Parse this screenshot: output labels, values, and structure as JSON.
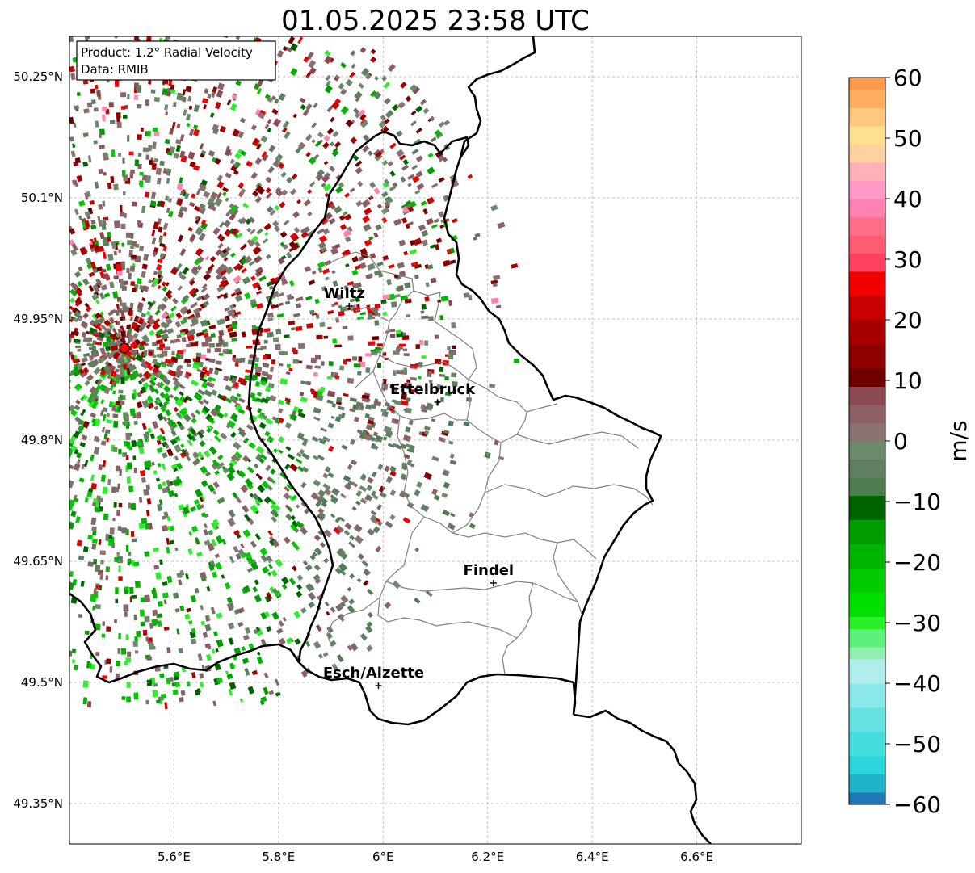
{
  "title": "01.05.2025 23:58 UTC",
  "info_box": {
    "product_line": "Product: 1.2° Radial Velocity",
    "data_line": "Data: RMIB"
  },
  "map": {
    "lon_range": [
      5.4,
      6.8
    ],
    "lat_range": [
      49.3,
      50.3
    ],
    "lon_ticks": [
      {
        "value": 5.6,
        "label": "5.6°E"
      },
      {
        "value": 5.8,
        "label": "5.8°E"
      },
      {
        "value": 6.0,
        "label": "6°E"
      },
      {
        "value": 6.2,
        "label": "6.2°E"
      },
      {
        "value": 6.4,
        "label": "6.4°E"
      },
      {
        "value": 6.6,
        "label": "6.6°E"
      }
    ],
    "lat_ticks": [
      {
        "value": 50.25,
        "label": "50.25°N"
      },
      {
        "value": 50.1,
        "label": "50.1°N"
      },
      {
        "value": 49.95,
        "label": "49.95°N"
      },
      {
        "value": 49.8,
        "label": "49.8°N"
      },
      {
        "value": 49.65,
        "label": "49.65°N"
      },
      {
        "value": 49.5,
        "label": "49.5°N"
      },
      {
        "value": 49.35,
        "label": "49.35°N"
      }
    ],
    "radar_site": {
      "lon": 5.505,
      "lat": 49.914,
      "color": "#ff0000"
    },
    "cities": [
      {
        "name": "Wiltz",
        "lon": 5.935,
        "lat": 49.966
      },
      {
        "name": "Ettelbruck",
        "lon": 6.104,
        "lat": 49.847
      },
      {
        "name": "Findel",
        "lon": 6.211,
        "lat": 49.623
      },
      {
        "name": "Esch/Alzette",
        "lon": 5.991,
        "lat": 49.496
      }
    ]
  },
  "colorbar": {
    "label": "m/s",
    "min": -60,
    "max": 60,
    "ticks": [
      {
        "value": 60,
        "label": "60"
      },
      {
        "value": 50,
        "label": "50"
      },
      {
        "value": 40,
        "label": "40"
      },
      {
        "value": 30,
        "label": "30"
      },
      {
        "value": 20,
        "label": "20"
      },
      {
        "value": 10,
        "label": "10"
      },
      {
        "value": 0,
        "label": "0"
      },
      {
        "value": -10,
        "label": "−10"
      },
      {
        "value": -20,
        "label": "−20"
      },
      {
        "value": -30,
        "label": "−30"
      },
      {
        "value": -40,
        "label": "−40"
      },
      {
        "value": -50,
        "label": "−50"
      },
      {
        "value": -60,
        "label": "−60"
      }
    ],
    "segments": [
      {
        "from": -60,
        "to": -58,
        "color": "#1f77b4"
      },
      {
        "from": -58,
        "to": -55,
        "color": "#1fb4c8"
      },
      {
        "from": -55,
        "to": -52,
        "color": "#2ad6dc"
      },
      {
        "from": -52,
        "to": -48,
        "color": "#45dede"
      },
      {
        "from": -48,
        "to": -44,
        "color": "#66e2e2"
      },
      {
        "from": -44,
        "to": -40,
        "color": "#8ae8e8"
      },
      {
        "from": -40,
        "to": -36,
        "color": "#b0eeee"
      },
      {
        "from": -36,
        "to": -34,
        "color": "#8ff0b0"
      },
      {
        "from": -34,
        "to": -31,
        "color": "#5ef07a"
      },
      {
        "from": -31,
        "to": -29,
        "color": "#2af02a"
      },
      {
        "from": -29,
        "to": -25,
        "color": "#00e000"
      },
      {
        "from": -25,
        "to": -21,
        "color": "#00cc00"
      },
      {
        "from": -21,
        "to": -17,
        "color": "#00b400"
      },
      {
        "from": -17,
        "to": -13,
        "color": "#009c00"
      },
      {
        "from": -13,
        "to": -9,
        "color": "#006400"
      },
      {
        "from": -9,
        "to": -6,
        "color": "#4f7d4f"
      },
      {
        "from": -6,
        "to": -3,
        "color": "#5e8060"
      },
      {
        "from": -3,
        "to": 0,
        "color": "#6a8a6a"
      },
      {
        "from": 0,
        "to": 3,
        "color": "#8a7272"
      },
      {
        "from": 3,
        "to": 6,
        "color": "#8c6066"
      },
      {
        "from": 6,
        "to": 9,
        "color": "#8b4a52"
      },
      {
        "from": 9,
        "to": 12,
        "color": "#6e0000"
      },
      {
        "from": 12,
        "to": 16,
        "color": "#8c0000"
      },
      {
        "from": 16,
        "to": 20,
        "color": "#a80000"
      },
      {
        "from": 20,
        "to": 24,
        "color": "#c80000"
      },
      {
        "from": 24,
        "to": 28,
        "color": "#f00000"
      },
      {
        "from": 28,
        "to": 31,
        "color": "#ff4060"
      },
      {
        "from": 31,
        "to": 34,
        "color": "#ff5c74"
      },
      {
        "from": 34,
        "to": 37,
        "color": "#ff6f8a"
      },
      {
        "from": 37,
        "to": 40,
        "color": "#ff82b0"
      },
      {
        "from": 40,
        "to": 43,
        "color": "#ff9ac8"
      },
      {
        "from": 43,
        "to": 46,
        "color": "#ffb0b8"
      },
      {
        "from": 46,
        "to": 49,
        "color": "#ffd0a0"
      },
      {
        "from": 49,
        "to": 52,
        "color": "#ffe090"
      },
      {
        "from": 52,
        "to": 55,
        "color": "#ffc880"
      },
      {
        "from": 55,
        "to": 58,
        "color": "#ffae60"
      },
      {
        "from": 58,
        "to": 60,
        "color": "#ff9a4c"
      }
    ]
  },
  "colors": {
    "border": "#000000",
    "canton": "#808080",
    "grid": "#b0b0b0"
  }
}
